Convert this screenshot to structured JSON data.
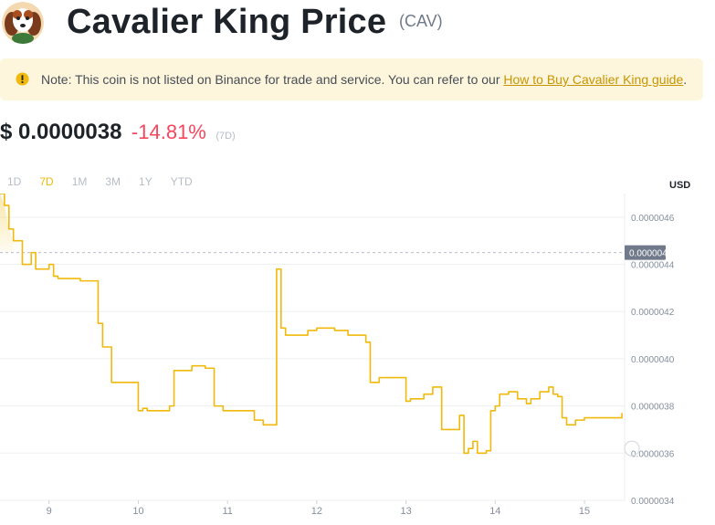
{
  "header": {
    "title": "Cavalier King Price",
    "ticker": "(CAV)"
  },
  "note": {
    "text": "Note: This coin is not listed on Binance for trade and service. You can refer to our ",
    "link_text": "How to Buy Cavalier King guide",
    "suffix": "."
  },
  "price": {
    "value": "$ 0.0000038",
    "change": "-14.81%",
    "period": "(7D)"
  },
  "ranges": [
    "1D",
    "7D",
    "1M",
    "3M",
    "1Y",
    "YTD"
  ],
  "active_range": "7D",
  "currency_label": "USD",
  "colors": {
    "accent": "#f0b90b",
    "negative": "#f6465d",
    "note_bg": "#fdf6dc"
  },
  "chart_data": {
    "type": "line",
    "x_ticks": [
      "9",
      "10",
      "11",
      "12",
      "13",
      "14",
      "15"
    ],
    "y_ticks": [
      "0.0000034",
      "0.0000036",
      "0.0000038",
      "0.0000040",
      "0.0000042",
      "0.0000044",
      "0.0000046"
    ],
    "ylim": [
      3.4e-06,
      4.7e-06
    ],
    "xlim": [
      8.45,
      15.45
    ],
    "current_label": "0.0000044",
    "current_value": 4.45e-06,
    "x": [
      8.45,
      8.5,
      8.55,
      8.6,
      8.7,
      8.8,
      8.85,
      8.9,
      9.0,
      9.05,
      9.1,
      9.2,
      9.35,
      9.5,
      9.55,
      9.6,
      9.7,
      9.8,
      9.95,
      10.0,
      10.05,
      10.1,
      10.25,
      10.35,
      10.4,
      10.5,
      10.6,
      10.75,
      10.85,
      10.95,
      11.05,
      11.2,
      11.3,
      11.4,
      11.5,
      11.55,
      11.6,
      11.65,
      11.8,
      11.9,
      12.0,
      12.1,
      12.2,
      12.35,
      12.45,
      12.55,
      12.6,
      12.7,
      12.9,
      13.0,
      13.05,
      13.2,
      13.3,
      13.4,
      13.45,
      13.5,
      13.6,
      13.65,
      13.7,
      13.75,
      13.8,
      13.9,
      13.95,
      14.0,
      14.05,
      14.15,
      14.25,
      14.35,
      14.4,
      14.5,
      14.6,
      14.65,
      14.7,
      14.75,
      14.8,
      14.9,
      15.0,
      15.1,
      15.2,
      15.35,
      15.4,
      15.42
    ],
    "values": [
      4.7e-06,
      4.65e-06,
      4.55e-06,
      4.5e-06,
      4.4e-06,
      4.45e-06,
      4.38e-06,
      4.38e-06,
      4.4e-06,
      4.35e-06,
      4.34e-06,
      4.34e-06,
      4.33e-06,
      4.33e-06,
      4.15e-06,
      4.05e-06,
      3.9e-06,
      3.9e-06,
      3.9e-06,
      3.78e-06,
      3.79e-06,
      3.78e-06,
      3.78e-06,
      3.8e-06,
      3.95e-06,
      3.95e-06,
      3.97e-06,
      3.96e-06,
      3.8e-06,
      3.78e-06,
      3.78e-06,
      3.78e-06,
      3.74e-06,
      3.72e-06,
      3.72e-06,
      4.38e-06,
      4.13e-06,
      4.1e-06,
      4.1e-06,
      4.12e-06,
      4.13e-06,
      4.13e-06,
      4.12e-06,
      4.1e-06,
      4.1e-06,
      4.07e-06,
      3.9e-06,
      3.92e-06,
      3.92e-06,
      3.82e-06,
      3.83e-06,
      3.85e-06,
      3.88e-06,
      3.7e-06,
      3.7e-06,
      3.7e-06,
      3.76e-06,
      3.6e-06,
      3.62e-06,
      3.65e-06,
      3.6e-06,
      3.61e-06,
      3.78e-06,
      3.8e-06,
      3.85e-06,
      3.86e-06,
      3.83e-06,
      3.81e-06,
      3.83e-06,
      3.86e-06,
      3.88e-06,
      3.85e-06,
      3.84e-06,
      3.75e-06,
      3.72e-06,
      3.74e-06,
      3.75e-06,
      3.75e-06,
      3.75e-06,
      3.75e-06,
      3.75e-06,
      3.77e-06
    ]
  }
}
